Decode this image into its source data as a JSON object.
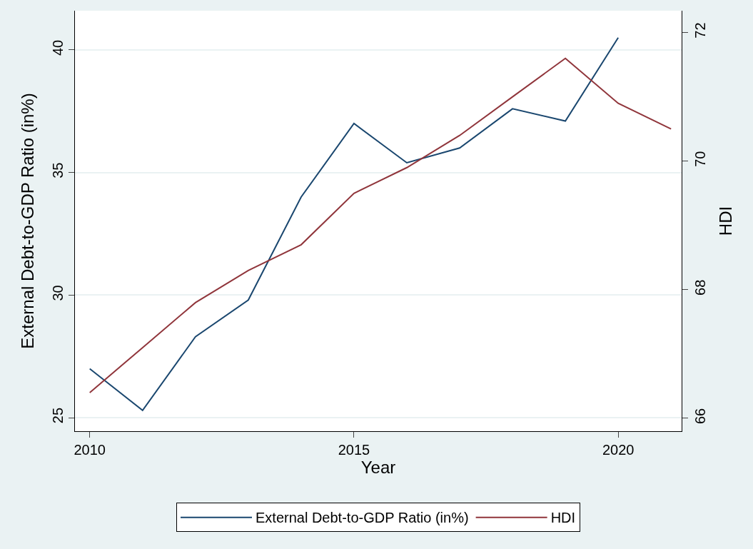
{
  "chart_data": {
    "type": "line",
    "xlabel": "Year",
    "ylabel": "External Debt-to-GDP Ratio (in%)",
    "y2label": "HDI",
    "x": [
      2010,
      2011,
      2012,
      2013,
      2014,
      2015,
      2016,
      2017,
      2018,
      2019,
      2020,
      2021
    ],
    "series": [
      {
        "name": "External Debt-to-GDP Ratio (in%)",
        "color": "#1a476f",
        "values": [
          27.0,
          25.3,
          28.3,
          29.8,
          34.0,
          37.0,
          35.4,
          36.0,
          37.6,
          37.1,
          40.5,
          null
        ]
      },
      {
        "name": "HDI",
        "color": "#90353b",
        "axis": "y2",
        "values": [
          66.4,
          67.1,
          67.8,
          68.3,
          68.7,
          69.5,
          69.9,
          70.4,
          71.0,
          71.6,
          70.9,
          70.5
        ]
      }
    ],
    "xlim": [
      2009.72,
      2021.2
    ],
    "xticks": [
      2010,
      2015,
      2020
    ],
    "ylim": [
      24.45,
      41.6
    ],
    "yticks": [
      25,
      30,
      35,
      40
    ],
    "y2lim": [
      65.8,
      72.34
    ],
    "y2ticks": [
      66,
      68,
      70,
      72
    ],
    "grid": "y",
    "legend": "bottom",
    "marker": "none",
    "line_style": "solid"
  }
}
